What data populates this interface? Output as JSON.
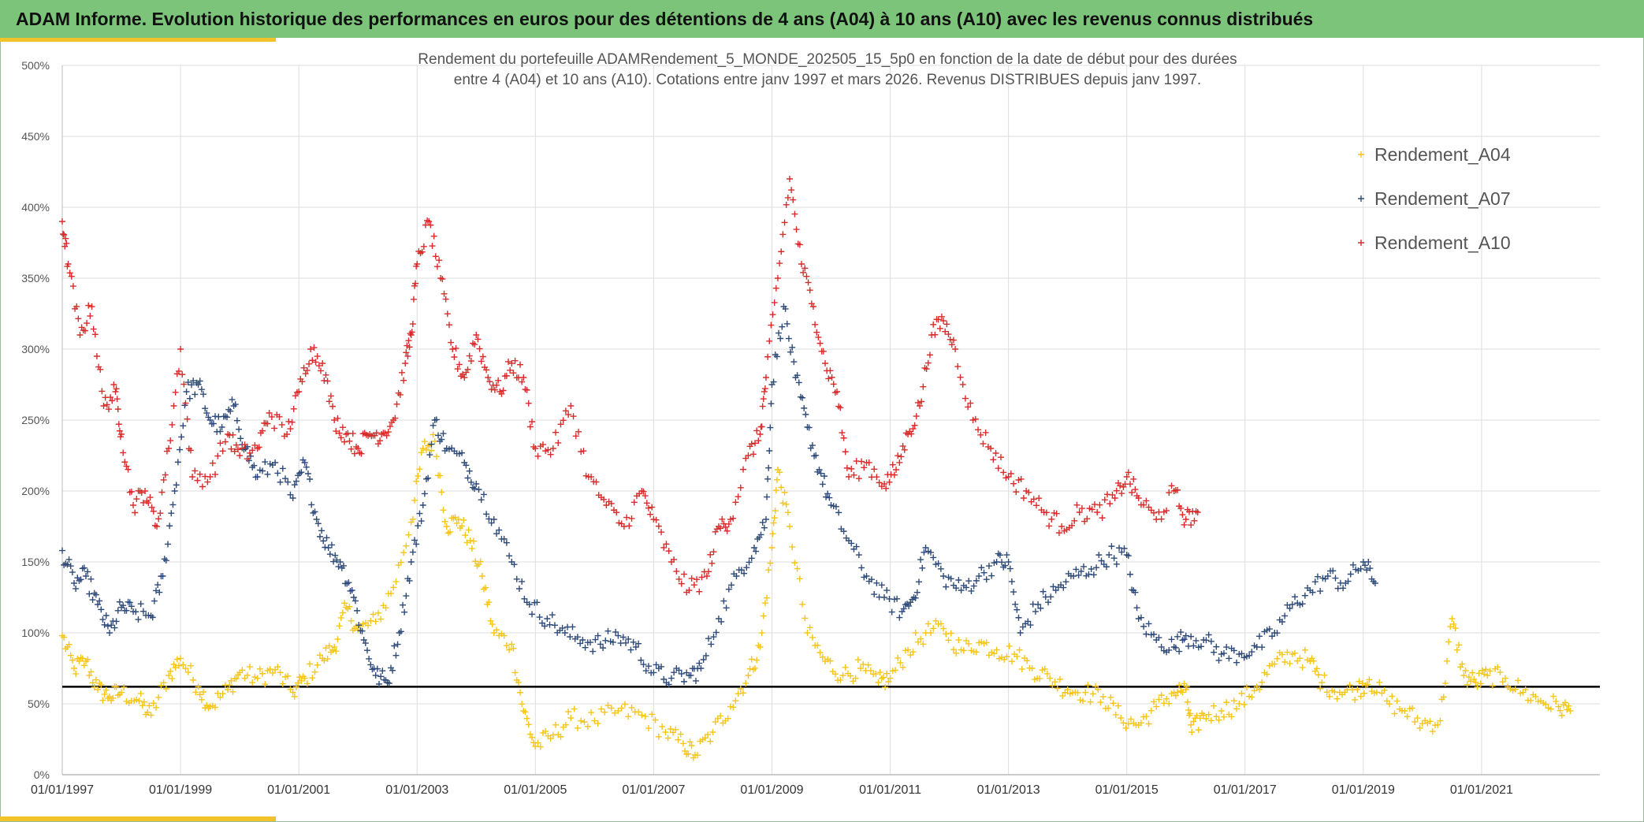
{
  "header": {
    "title": "ADAM Informe. Evolution historique des performances en euros pour des détentions de 4 ans (A04) à 10 ans (A10) avec les revenus connus distribués"
  },
  "colors": {
    "banner": "#7cc47a",
    "accent": "#f2c22a",
    "A04": "#f5c518",
    "A07": "#2e4a78",
    "A10": "#d92b2b",
    "reference": "#000000",
    "grid": "#dddddd"
  },
  "chart_data": {
    "type": "scatter",
    "title_line1": "Rendement du portefeuille ADAMRendement_5_MONDE_202505_15_5p0  en fonction de la date de début pour des durées",
    "title_line2": "entre 4 (A04) et 10 ans (A10). Cotations entre janv 1997 et mars 2026. Revenus DISTRIBUES depuis janv 1997.",
    "xlabel": "",
    "ylabel": "",
    "xlim": [
      1997.0,
      2023.0
    ],
    "ylim": [
      0,
      500
    ],
    "y_ticks": [
      "0%",
      "50%",
      "100%",
      "150%",
      "200%",
      "250%",
      "300%",
      "350%",
      "400%",
      "450%",
      "500%"
    ],
    "x_ticks": [
      {
        "year": 1997,
        "label": "01/01/1997"
      },
      {
        "year": 1999,
        "label": "01/01/1999"
      },
      {
        "year": 2001,
        "label": "01/01/2001"
      },
      {
        "year": 2003,
        "label": "01/01/2003"
      },
      {
        "year": 2005,
        "label": "01/01/2005"
      },
      {
        "year": 2007,
        "label": "01/01/2007"
      },
      {
        "year": 2009,
        "label": "01/01/2009"
      },
      {
        "year": 2011,
        "label": "01/01/2011"
      },
      {
        "year": 2013,
        "label": "01/01/2013"
      },
      {
        "year": 2015,
        "label": "01/01/2015"
      },
      {
        "year": 2017,
        "label": "01/01/2017"
      },
      {
        "year": 2019,
        "label": "01/01/2019"
      },
      {
        "year": 2021,
        "label": "01/01/2021"
      }
    ],
    "grid": true,
    "legend_position": "top-right",
    "reference_line": 62,
    "series": [
      {
        "name": "Rendement_A04",
        "marker": "+",
        "x": [
          1997.0,
          1997.2,
          1997.4,
          1997.6,
          1997.8,
          1998.0,
          1998.3,
          1998.5,
          1998.8,
          1999.0,
          1999.3,
          1999.5,
          1999.8,
          2000.0,
          2000.3,
          2000.6,
          2000.9,
          2001.1,
          2001.4,
          2001.6,
          2001.8,
          2002.0,
          2002.3,
          2002.6,
          2002.9,
          2003.1,
          2003.3,
          2003.5,
          2003.7,
          2003.9,
          2004.1,
          2004.3,
          2004.6,
          2004.8,
          2005.0,
          2005.3,
          2005.6,
          2006.0,
          2006.4,
          2006.8,
          2007.2,
          2007.5,
          2007.7,
          2008.0,
          2008.3,
          2008.6,
          2008.8,
          2009.0,
          2009.1,
          2009.3,
          2009.6,
          2009.9,
          2010.2,
          2010.5,
          2010.8,
          2011.0,
          2011.3,
          2011.6,
          2011.9,
          2012.2,
          2012.5,
          2012.8,
          2013.1,
          2013.4,
          2013.7,
          2014.0,
          2014.3,
          2014.6,
          2014.9,
          2015.2,
          2015.5,
          2015.8,
          2016.0,
          2016.1,
          2016.3,
          2016.6,
          2016.9,
          2017.2,
          2017.5,
          2017.8,
          2018.1,
          2018.3,
          2018.6,
          2018.9,
          2019.1,
          2019.4,
          2019.7,
          2020.0,
          2020.3,
          2020.5,
          2020.7,
          2020.9,
          2021.1,
          2021.4,
          2021.7,
          2022.0,
          2022.3,
          2022.5
        ],
        "values": [
          98,
          75,
          80,
          60,
          55,
          58,
          52,
          42,
          70,
          82,
          62,
          48,
          60,
          72,
          68,
          74,
          58,
          68,
          82,
          90,
          118,
          102,
          108,
          132,
          178,
          230,
          235,
          175,
          180,
          165,
          140,
          100,
          92,
          45,
          20,
          28,
          40,
          38,
          45,
          42,
          30,
          22,
          14,
          30,
          48,
          70,
          90,
          160,
          215,
          175,
          100,
          80,
          70,
          75,
          65,
          68,
          88,
          100,
          103,
          88,
          93,
          88,
          85,
          75,
          68,
          60,
          58,
          55,
          40,
          35,
          48,
          58,
          60,
          30,
          42,
          45,
          50,
          62,
          78,
          85,
          80,
          65,
          58,
          60,
          67,
          52,
          45,
          36,
          38,
          110,
          70,
          65,
          70,
          68,
          58,
          52,
          48,
          45
        ]
      },
      {
        "name": "Rendement_A07",
        "marker": "+",
        "x": [
          1997.0,
          1997.2,
          1997.4,
          1997.6,
          1997.8,
          1998.0,
          1998.2,
          1998.5,
          1998.7,
          1998.9,
          1999.1,
          1999.3,
          1999.5,
          1999.7,
          1999.9,
          2000.1,
          2000.3,
          2000.6,
          2000.9,
          2001.1,
          2001.3,
          2001.5,
          2001.7,
          2001.9,
          2002.1,
          2002.3,
          2002.5,
          2002.7,
          2002.9,
          2003.1,
          2003.3,
          2003.5,
          2003.8,
          2004.0,
          2004.3,
          2004.6,
          2004.9,
          2005.2,
          2005.5,
          2005.8,
          2006.1,
          2006.4,
          2006.7,
          2007.0,
          2007.3,
          2007.6,
          2007.8,
          2008.1,
          2008.4,
          2008.7,
          2008.9,
          2009.0,
          2009.2,
          2009.4,
          2009.6,
          2009.8,
          2010.0,
          2010.3,
          2010.6,
          2010.9,
          2011.2,
          2011.4,
          2011.6,
          2011.9,
          2012.2,
          2012.5,
          2012.8,
          2013.0,
          2013.2,
          2013.5,
          2013.8,
          2014.1,
          2014.4,
          2014.7,
          2015.0,
          2015.2,
          2015.5,
          2015.8,
          2016.0,
          2016.3,
          2016.6,
          2016.9,
          2017.2,
          2017.5,
          2017.8,
          2018.1,
          2018.4,
          2018.7,
          2019.0,
          2019.2
        ],
        "values": [
          158,
          135,
          140,
          120,
          100,
          118,
          115,
          112,
          140,
          200,
          270,
          275,
          250,
          245,
          260,
          230,
          210,
          220,
          195,
          220,
          180,
          160,
          150,
          130,
          95,
          70,
          65,
          100,
          150,
          190,
          250,
          230,
          220,
          205,
          180,
          150,
          120,
          110,
          100,
          95,
          92,
          98,
          90,
          72,
          68,
          70,
          75,
          110,
          140,
          160,
          180,
          275,
          330,
          280,
          245,
          215,
          190,
          165,
          140,
          125,
          115,
          125,
          160,
          140,
          130,
          140,
          150,
          150,
          100,
          120,
          130,
          140,
          145,
          155,
          155,
          110,
          95,
          90,
          98,
          95,
          85,
          85,
          90,
          100,
          120,
          130,
          140,
          135,
          150,
          135
        ]
      },
      {
        "name": "Rendement_A10",
        "marker": "+",
        "x": [
          1997.0,
          1997.1,
          1997.3,
          1997.5,
          1997.7,
          1997.9,
          1998.0,
          1998.2,
          1998.4,
          1998.6,
          1998.8,
          1999.0,
          1999.2,
          1999.5,
          1999.8,
          2000.0,
          2000.3,
          2000.5,
          2000.8,
          2001.0,
          2001.2,
          2001.4,
          2001.6,
          2001.8,
          2002.0,
          2002.2,
          2002.4,
          2002.6,
          2002.8,
          2002.9,
          2003.0,
          2003.2,
          2003.4,
          2003.6,
          2003.8,
          2004.0,
          2004.2,
          2004.4,
          2004.6,
          2004.8,
          2005.0,
          2005.3,
          2005.6,
          2005.9,
          2006.2,
          2006.5,
          2006.8,
          2007.0,
          2007.3,
          2007.6,
          2007.9,
          2008.1,
          2008.3,
          2008.6,
          2008.8,
          2008.9,
          2009.1,
          2009.3,
          2009.5,
          2009.7,
          2009.9,
          2010.1,
          2010.3,
          2010.6,
          2010.9,
          2011.1,
          2011.3,
          2011.5,
          2011.7,
          2011.9,
          2012.1,
          2012.4,
          2012.7,
          2013.0,
          2013.3,
          2013.6,
          2013.9,
          2014.2,
          2014.5,
          2014.8,
          2015.0,
          2015.2,
          2015.5,
          2015.8,
          2016.0,
          2016.2
        ],
        "values": [
          390,
          360,
          310,
          330,
          260,
          270,
          240,
          190,
          200,
          175,
          230,
          300,
          210,
          210,
          240,
          225,
          230,
          255,
          240,
          270,
          300,
          290,
          250,
          240,
          230,
          240,
          240,
          250,
          290,
          310,
          360,
          390,
          350,
          300,
          280,
          310,
          280,
          270,
          290,
          280,
          230,
          230,
          260,
          210,
          190,
          175,
          200,
          180,
          150,
          130,
          140,
          175,
          180,
          225,
          240,
          280,
          350,
          420,
          360,
          330,
          290,
          270,
          210,
          220,
          205,
          215,
          240,
          260,
          310,
          320,
          300,
          250,
          230,
          210,
          200,
          185,
          175,
          185,
          185,
          195,
          210,
          195,
          180,
          200,
          180,
          185
        ]
      }
    ]
  }
}
